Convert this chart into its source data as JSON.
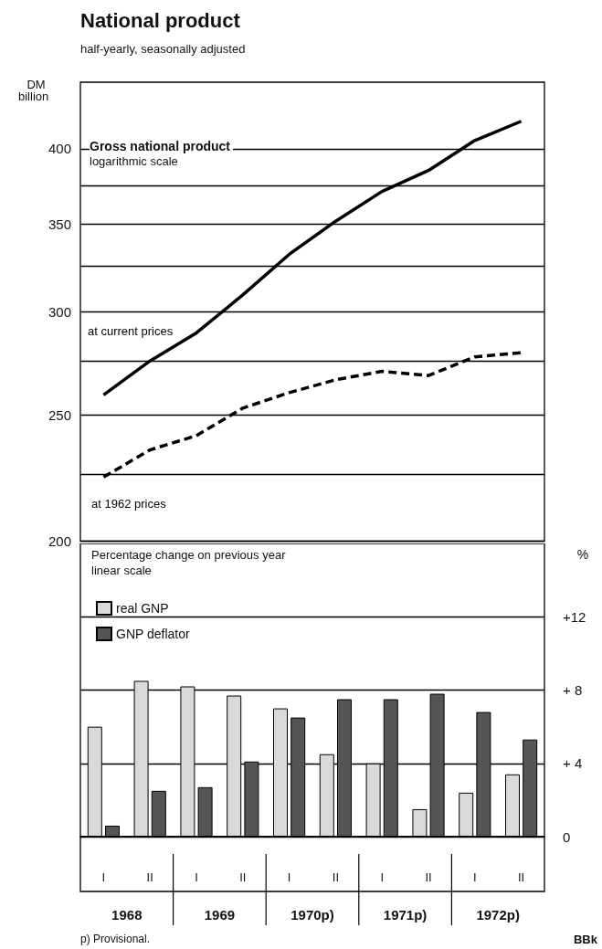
{
  "chart_data": [
    {
      "type": "line",
      "title": "National product",
      "subtitle": "half-yearly, seasonally adjusted",
      "ylabel": "DM billion",
      "annotations": [
        "Gross national product",
        "logarithmic scale"
      ],
      "categories": [
        "I",
        "II",
        "I",
        "II",
        "I",
        "II",
        "I",
        "II",
        "I",
        "II"
      ],
      "series": [
        {
          "name": "at current prices",
          "color": "#000000",
          "line_style": "solid",
          "values": [
            259,
            275,
            289,
            309,
            332,
            352,
            371,
            385,
            406,
            420
          ]
        },
        {
          "name": "at 1962 prices",
          "color": "#000000",
          "line_style": "dashed",
          "values": [
            224,
            235,
            241,
            253,
            260,
            266,
            270,
            268,
            277,
            279
          ]
        }
      ],
      "log": true,
      "ylim": [
        200,
        450
      ],
      "yticks": [
        200,
        {
          "value": 225,
          "label": null
        },
        250,
        {
          "value": 275,
          "label": null
        },
        300,
        {
          "value": 325,
          "label": null
        },
        350,
        {
          "value": 375,
          "label": null
        },
        400
      ],
      "grid": "y",
      "marker": "none",
      "tick_labels": "y"
    },
    {
      "type": "bar",
      "title": "Percentage change on previous year",
      "subtitle": "linear scale",
      "ylabel": "%",
      "annotations": [
        "1968",
        "1969",
        "1970p)",
        "1971p)",
        "1972p)",
        "p) Provisional.",
        "BBk"
      ],
      "categories": [
        "I",
        "II",
        "I",
        "II",
        "I",
        "II",
        "I",
        "II",
        "I",
        "II"
      ],
      "series": [
        {
          "name": "real GNP",
          "color": "#d9d9d9",
          "values": [
            6.0,
            8.5,
            8.2,
            7.7,
            7.0,
            4.5,
            4.0,
            1.5,
            2.4,
            3.4
          ]
        },
        {
          "name": "GNP deflator",
          "color": "#555555",
          "values": [
            0.6,
            2.5,
            2.7,
            4.1,
            6.5,
            7.5,
            7.5,
            7.8,
            6.8,
            5.3
          ]
        }
      ],
      "ylim": [
        0,
        16
      ],
      "yticks": [
        0,
        {
          "value": 4,
          "label": "+ 4"
        },
        {
          "value": 8,
          "label": "+ 8"
        },
        {
          "value": 12,
          "label": "+12"
        }
      ],
      "grid": "y",
      "legend": "top left"
    }
  ]
}
